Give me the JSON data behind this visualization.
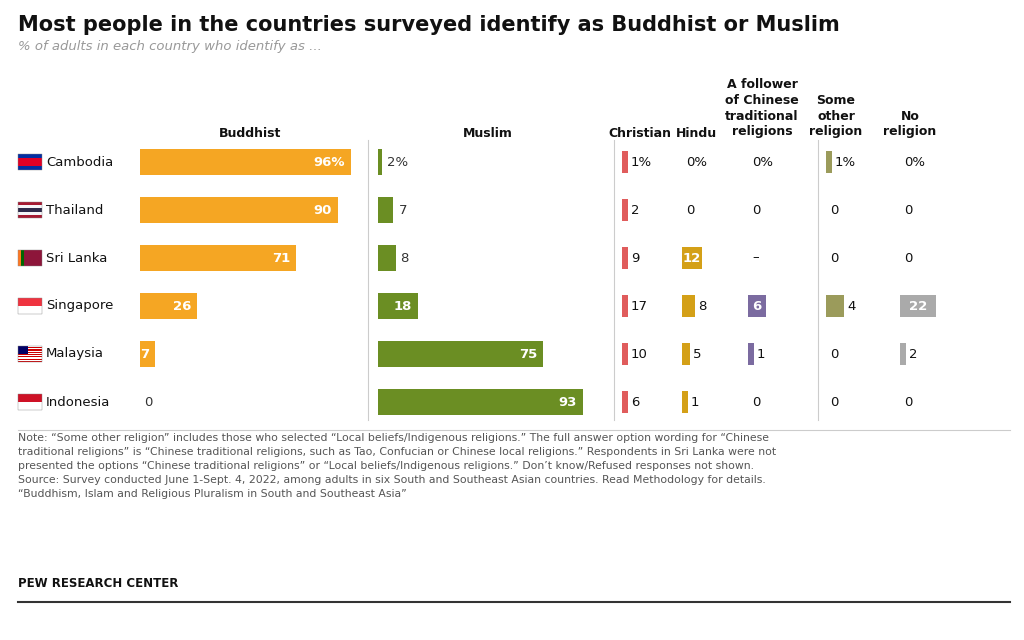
{
  "title": "Most people in the countries surveyed identify as Buddhist or Muslim",
  "subtitle": "% of adults in each country who identify as ...",
  "countries": [
    "Cambodia",
    "Thailand",
    "Sri Lanka",
    "Singapore",
    "Malaysia",
    "Indonesia"
  ],
  "data": {
    "Buddhist": [
      96,
      90,
      71,
      26,
      7,
      0
    ],
    "Muslim": [
      2,
      7,
      8,
      18,
      75,
      93
    ],
    "Christian": [
      1,
      2,
      9,
      17,
      10,
      6
    ],
    "Hindu": [
      0,
      0,
      12,
      8,
      5,
      1
    ],
    "Chinese_trad": [
      0,
      0,
      -1,
      6,
      1,
      0
    ],
    "Some_other": [
      1,
      0,
      0,
      4,
      0,
      0
    ],
    "No_religion": [
      0,
      0,
      0,
      22,
      2,
      0
    ]
  },
  "display": {
    "Buddhist": [
      "96%",
      "90",
      "71",
      "26",
      "7",
      "0"
    ],
    "Muslim": [
      "2%",
      "7",
      "8",
      "18",
      "75",
      "93"
    ],
    "Christian": [
      "1%",
      "2",
      "9",
      "17",
      "10",
      "6"
    ],
    "Hindu": [
      "0%",
      "0",
      "12",
      "8",
      "5",
      "1"
    ],
    "Chinese_trad": [
      "0%",
      "0",
      "–",
      "6",
      "1",
      "0"
    ],
    "Some_other": [
      "1%",
      "0",
      "0",
      "4",
      "0",
      "0"
    ],
    "No_religion": [
      "0%",
      "0",
      "0",
      "22",
      "2",
      "0"
    ]
  },
  "colors": {
    "Buddhist": "#F5A623",
    "Muslim": "#6B8E23",
    "Christian": "#E05C5C",
    "Hindu": "#D4A017",
    "Chinese_trad": "#7B6BA0",
    "Some_other": "#9B9B5B",
    "No_religion": "#AAAAAA"
  },
  "background": "#FFFFFF",
  "note_line1": "Note: “Some other religion” includes those who selected “Local beliefs/Indigenous religions.” The full answer option wording for “Chinese",
  "note_line2": "traditional religions” is “Chinese traditional religions, such as Tao, Confucian or Chinese local religions.” Respondents in Sri Lanka were not",
  "note_line3": "presented the options “Chinese traditional religions” or “Local beliefs/Indigenous religions.” Don’t know/Refused responses not shown.",
  "note_line4": "Source: Survey conducted June 1-Sept. 4, 2022, among adults in six South and Southeast Asian countries. Read Methodology for details.",
  "note_line5": "“Buddhism, Islam and Religious Pluralism in South and Southeast Asia”",
  "pew": "PEW RESEARCH CENTER"
}
